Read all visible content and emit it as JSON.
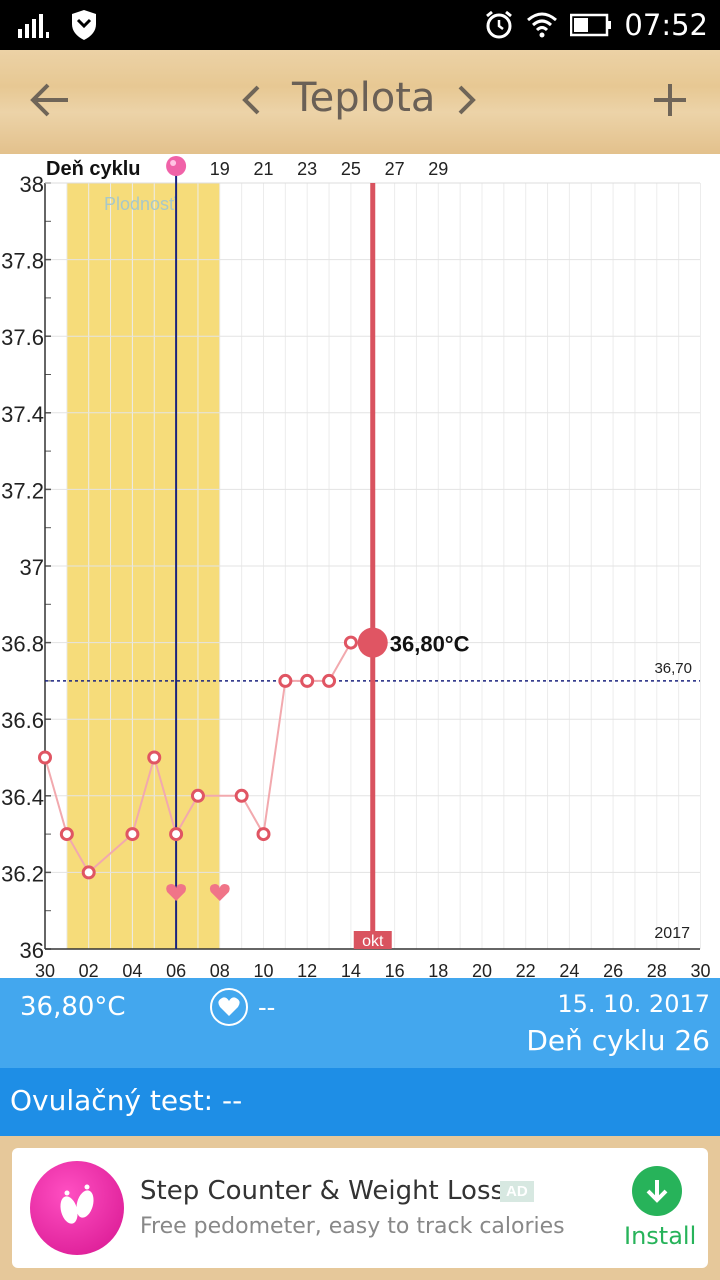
{
  "status_bar": {
    "time": "07:52",
    "icons": [
      "signal-icon",
      "shield-icon",
      "alarm-icon",
      "wifi-icon",
      "battery-icon"
    ]
  },
  "app_bar": {
    "title": "Teplota",
    "back_icon": "arrow-left-icon",
    "prev_icon": "chevron-left-icon",
    "next_icon": "chevron-right-icon",
    "add_icon": "plus-icon"
  },
  "chart_data": {
    "type": "line",
    "cycle_label": "Deň cyklu",
    "cycle_ticks": [
      "19",
      "21",
      "23",
      "25",
      "27",
      "29"
    ],
    "fertile_label": "Plodnosť",
    "x_ticks": [
      "30",
      "02",
      "04",
      "06",
      "08",
      "10",
      "12",
      "14",
      "16",
      "18",
      "20",
      "22",
      "24",
      "26",
      "28",
      "30"
    ],
    "y_ticks": [
      "36",
      "36.2",
      "36.4",
      "36.6",
      "36.8",
      "37",
      "37.2",
      "37.4",
      "37.6",
      "37.8",
      "38"
    ],
    "ylim": [
      36,
      38
    ],
    "series": [
      {
        "day_index": [
          0,
          1,
          2,
          4,
          5,
          6,
          7,
          9,
          10,
          11,
          12,
          13,
          14,
          15
        ],
        "values": [
          36.5,
          36.3,
          36.2,
          36.3,
          36.5,
          36.3,
          36.4,
          36.4,
          36.3,
          36.7,
          36.7,
          36.7,
          36.8,
          36.8
        ]
      }
    ],
    "highlight_value_label": "36,80°C",
    "coverline_label": "36,70",
    "coverline_value": 36.7,
    "month_label": "okt",
    "year_label": "2017",
    "fertile_window": [
      1,
      8
    ],
    "ovulation_day_index": 6,
    "heart_days": [
      6,
      8
    ],
    "cycle_marker_day_index": 6,
    "current_day_index": 15,
    "colors": {
      "fertile": "#f6dc7a",
      "point": "#e05563",
      "line": "#f2a9ae",
      "current_line": "#d9535f",
      "ovulation_line": "#1a237e",
      "coverline": "#1a237e",
      "heart": "#f07488",
      "marker": "#f062a8"
    }
  },
  "info_bar": {
    "temperature": "36,80°C",
    "heart_value": "--",
    "date": "15. 10. 2017",
    "cycle_day": "Deň cyklu 26"
  },
  "ovulation_test": {
    "label": "Ovulačný test: --"
  },
  "ad": {
    "title": "Step Counter & Weight Loss",
    "badge": "AD",
    "subtitle": "Free pedometer, easy to track calories",
    "install_label": "Install"
  }
}
